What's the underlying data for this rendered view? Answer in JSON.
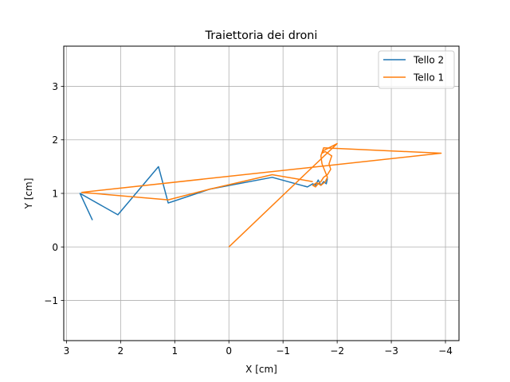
{
  "chart_data": {
    "type": "line",
    "title": "Traiettoria dei droni",
    "xlabel": "X [cm]",
    "ylabel": "Y [cm]",
    "xlim": [
      3.05,
      -4.25
    ],
    "ylim": [
      3.75,
      -1.75
    ],
    "x_ticks": [
      3,
      2,
      1,
      0,
      -1,
      -2,
      -3,
      -4
    ],
    "y_ticks": [
      -1,
      0,
      1,
      2,
      3
    ],
    "x_tick_labels": [
      "3",
      "2",
      "1",
      "0",
      "−1",
      "−2",
      "−3",
      "−4"
    ],
    "y_tick_labels": [
      "−1",
      "0",
      "1",
      "2",
      "3"
    ],
    "grid": true,
    "legend_position": "top-right",
    "series": [
      {
        "name": "Tello 2",
        "color": "#1f77b4",
        "x": [
          2.52,
          2.75,
          2.05,
          1.3,
          1.12,
          0.35,
          -0.8,
          -1.45,
          -1.55,
          -1.6,
          -1.65,
          -1.7,
          -1.75,
          -1.8,
          -1.82
        ],
        "y": [
          0.5,
          1.0,
          0.6,
          1.5,
          0.82,
          1.08,
          1.3,
          1.12,
          1.18,
          1.15,
          1.25,
          1.15,
          1.22,
          1.18,
          1.28
        ]
      },
      {
        "name": "Tello 1",
        "color": "#ff7f0e",
        "x": [
          0.0,
          -2.0,
          -1.75,
          -1.72,
          -1.78,
          -1.9,
          -1.85,
          -1.88,
          -1.82,
          -1.75,
          -1.7,
          -1.65,
          -1.6,
          -1.55,
          -1.62,
          -1.7,
          -1.78,
          -1.82,
          -1.78,
          -1.72,
          -1.7,
          -1.75,
          -3.92,
          2.72,
          1.12,
          0.35,
          -0.8,
          -1.55
        ],
        "y": [
          0.0,
          1.93,
          1.8,
          1.75,
          1.78,
          1.7,
          1.55,
          1.45,
          1.35,
          1.3,
          1.22,
          1.18,
          1.12,
          1.15,
          1.2,
          1.15,
          1.22,
          1.3,
          1.4,
          1.55,
          1.7,
          1.85,
          1.75,
          1.02,
          0.88,
          1.08,
          1.35,
          1.22
        ]
      }
    ]
  }
}
